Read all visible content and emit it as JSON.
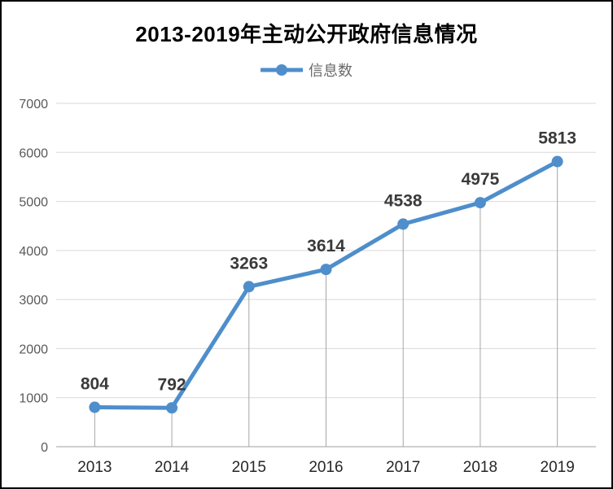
{
  "chart_data": {
    "type": "line",
    "title": "2013-2019年主动公开政府信息情况",
    "legend_entries": [
      "信息数"
    ],
    "legend_position": "top",
    "categories": [
      "2013",
      "2014",
      "2015",
      "2016",
      "2017",
      "2018",
      "2019"
    ],
    "series": [
      {
        "name": "信息数",
        "values": [
          804,
          792,
          3263,
          3614,
          4538,
          4975,
          5813
        ]
      }
    ],
    "xlabel": "",
    "ylabel": "",
    "ylim": [
      0,
      7000
    ],
    "yticks": [
      0,
      1000,
      2000,
      3000,
      4000,
      5000,
      6000,
      7000
    ],
    "grid": true,
    "data_labels": true,
    "drop_lines": true,
    "colors": {
      "series_line": "#4e8ecb",
      "gridline": "#d9d9d9",
      "axis_line": "#bfbfbf",
      "drop_line": "#a6a6a6",
      "title_text": "#000000",
      "legend_text": "#696969",
      "ytick_text": "#595959",
      "xtick_text": "#262626",
      "data_label_text": "#3a3a3a",
      "background": "#ffffff",
      "frame_border": "#000000"
    }
  }
}
